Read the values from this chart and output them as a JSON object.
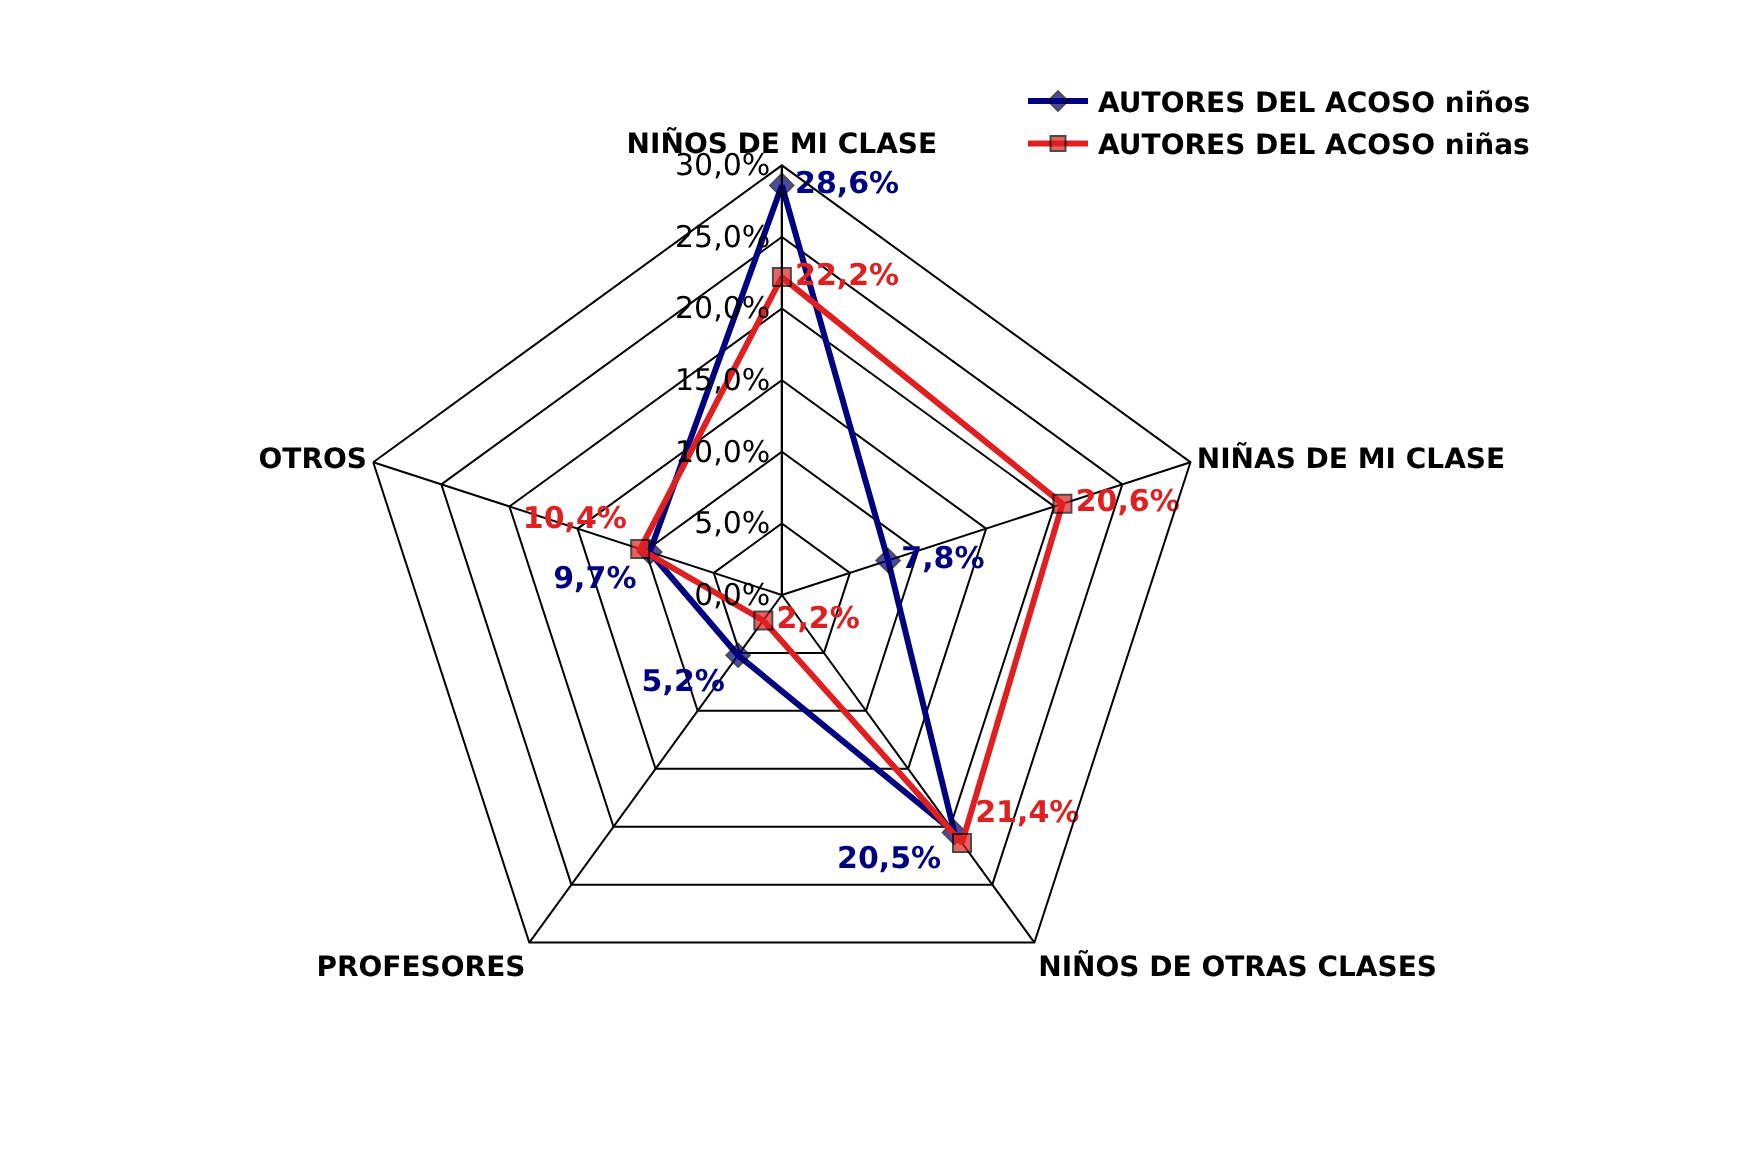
{
  "chart_data": {
    "type": "radar",
    "categories": [
      "NIÑOS DE MI CLASE",
      "NIÑAS DE MI CLASE",
      "NIÑOS DE OTRAS CLASES",
      "PROFESORES",
      "OTROS"
    ],
    "series": [
      {
        "name": "AUTORES DEL ACOSO niños",
        "color": "#000080",
        "marker": "diamond",
        "values": [
          28.6,
          7.8,
          20.5,
          5.2,
          9.7
        ],
        "value_labels": [
          "28,6%",
          "7,8%",
          "20,5%",
          "5,2%",
          "9,7%"
        ]
      },
      {
        "name": "AUTORES DEL ACOSO niñas",
        "color": "#e02020",
        "marker": "square",
        "values": [
          22.2,
          20.6,
          21.4,
          2.2,
          10.4
        ],
        "value_labels": [
          "22,2%",
          "20,6%",
          "21,4%",
          "2,2%",
          "10,4%"
        ]
      }
    ],
    "ylim": [
      0,
      30
    ],
    "yticks": [
      {
        "value": 0,
        "label": "0,0%"
      },
      {
        "value": 5,
        "label": "5,0%"
      },
      {
        "value": 10,
        "label": "10,0%"
      },
      {
        "value": 15,
        "label": "15,0%"
      },
      {
        "value": 20,
        "label": "20,0%"
      },
      {
        "value": 25,
        "label": "25,0%"
      },
      {
        "value": 30,
        "label": "30,0%"
      }
    ],
    "grid": true,
    "legend": "top right",
    "line_style": "solid"
  }
}
